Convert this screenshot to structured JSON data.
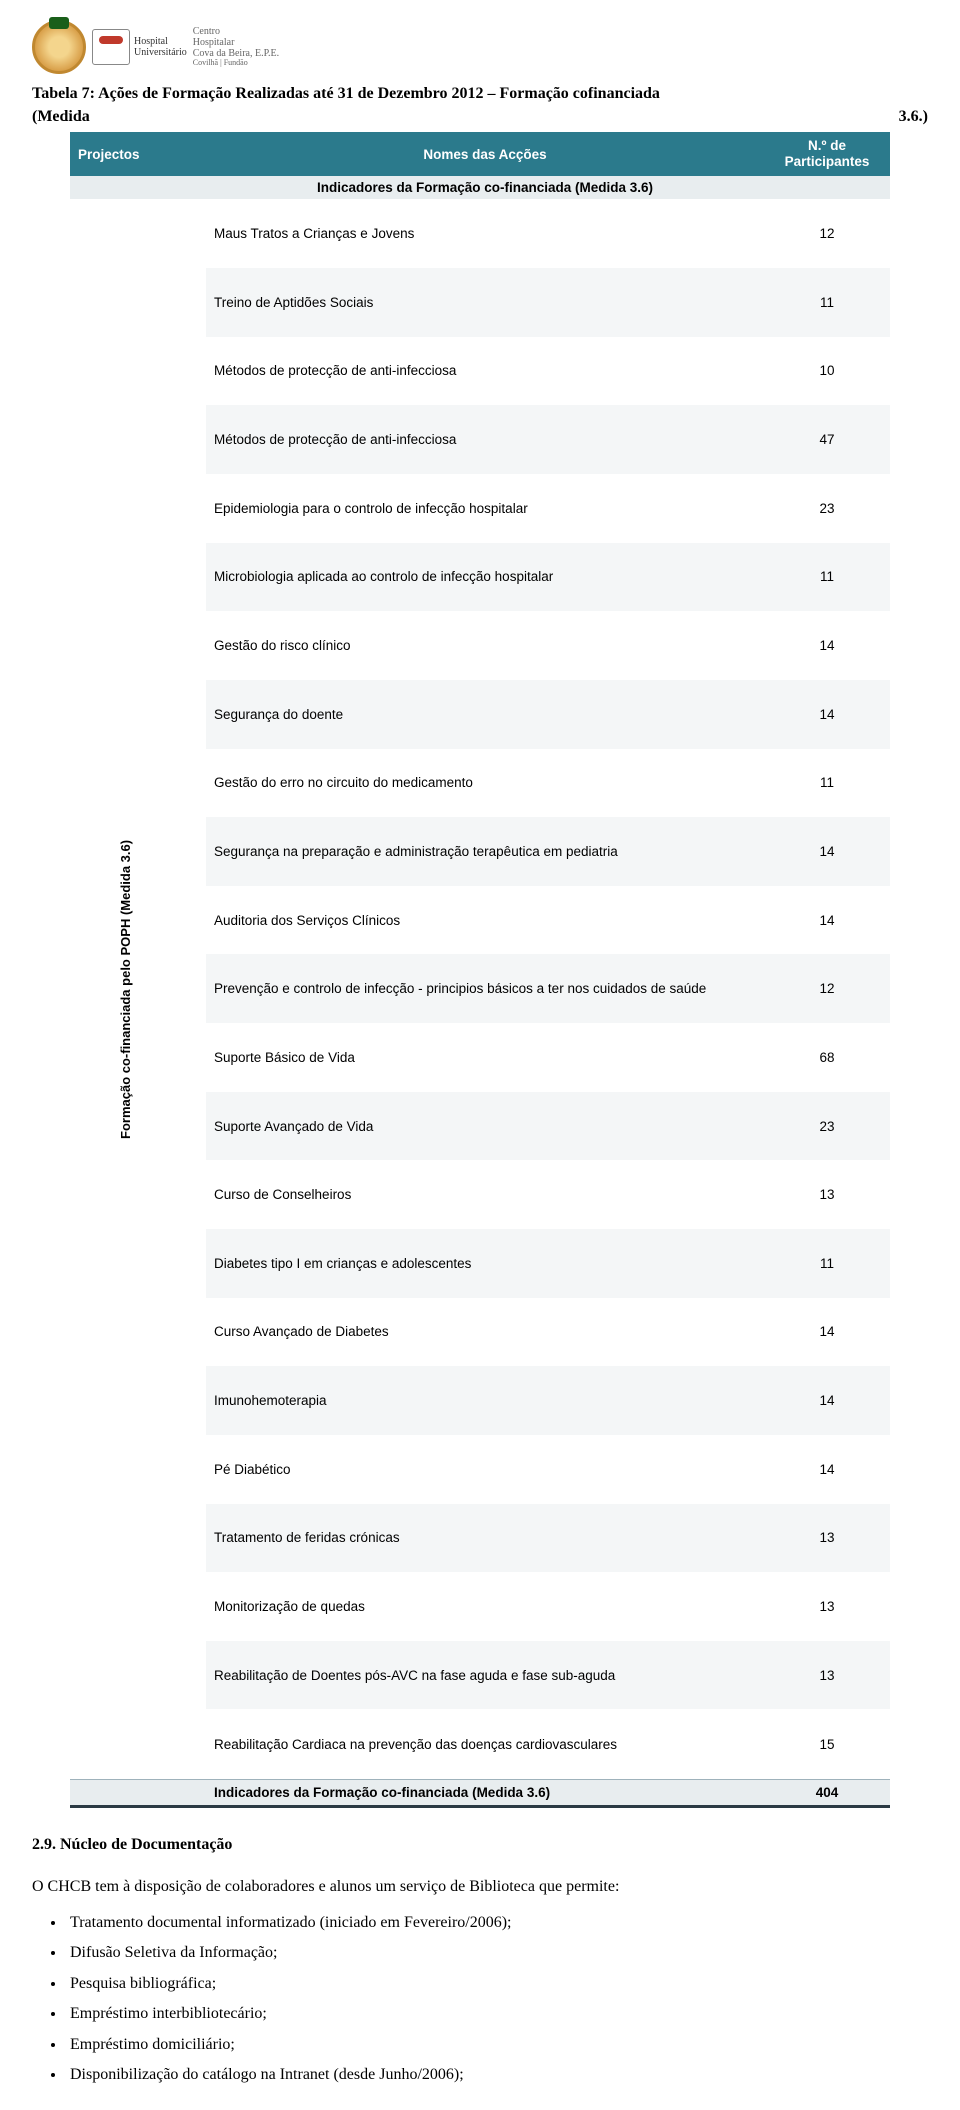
{
  "header": {
    "hospital_label": "Hospital",
    "hospital_sub": "Universitário",
    "chcb_lines": [
      "Centro",
      "Hospitalar",
      "Cova da Beira, E.P.E.",
      "Covilhã | Fundão"
    ]
  },
  "caption": {
    "line1": "Tabela 7: Ações de Formação Realizadas até 31 de Dezembro 2012 – Formação cofinanciada",
    "line2_left": "(Medida",
    "line2_right": "3.6.)"
  },
  "table": {
    "headers": {
      "projectos": "Projectos",
      "nomes": "Nomes das Acções",
      "participantes": "N.º de\nParticipantes"
    },
    "subheader": "Indicadores da Formação co-financiada (Medida 3.6)",
    "rotated_label": "Formação co-financiada pelo POPH (Medida 3.6)",
    "rows": [
      {
        "n": "Maus Tratos a Crianças e Jovens",
        "v": "12"
      },
      {
        "n": "Treino de Aptidões Sociais",
        "v": "11"
      },
      {
        "n": "Métodos de protecção de anti-infecciosa",
        "v": "10"
      },
      {
        "n": "Métodos de protecção de anti-infecciosa",
        "v": "47"
      },
      {
        "n": "Epidemiologia para o controlo de infecção hospitalar",
        "v": "23"
      },
      {
        "n": "Microbiologia aplicada ao controlo de infecção hospitalar",
        "v": "11"
      },
      {
        "n": "Gestão do risco clínico",
        "v": "14"
      },
      {
        "n": "Segurança do doente",
        "v": "14"
      },
      {
        "n": "Gestão do erro no circuito do medicamento",
        "v": "11"
      },
      {
        "n": "Segurança na preparação e administração terapêutica em pediatria",
        "v": "14"
      },
      {
        "n": "Auditoria dos Serviços Clínicos",
        "v": "14"
      },
      {
        "n": "Prevenção e controlo de infecção - principios básicos a ter nos cuidados de saúde",
        "v": "12"
      },
      {
        "n": "Suporte Básico de Vida",
        "v": "68"
      },
      {
        "n": "Suporte Avançado de Vida",
        "v": "23"
      },
      {
        "n": "Curso de Conselheiros",
        "v": "13"
      },
      {
        "n": "Diabetes tipo I em crianças e adolescentes",
        "v": "11"
      },
      {
        "n": "Curso Avançado de Diabetes",
        "v": "14"
      },
      {
        "n": "Imunohemoterapia",
        "v": "14"
      },
      {
        "n": "Pé Diabético",
        "v": "14"
      },
      {
        "n": "Tratamento de feridas crónicas",
        "v": "13"
      },
      {
        "n": "Monitorização de quedas",
        "v": "13"
      },
      {
        "n": "Reabilitação de Doentes pós-AVC na fase aguda e fase sub-aguda",
        "v": "13"
      },
      {
        "n": "Reabilitação Cardiaca na prevenção das doenças cardiovasculares",
        "v": "15"
      }
    ],
    "total": {
      "label": "Indicadores da Formação co-financiada (Medida 3.6)",
      "value": "404"
    }
  },
  "section": {
    "heading": "2.9. Núcleo de Documentação",
    "para": "O CHCB tem à disposição de colaboradores e alunos um serviço de Biblioteca que permite:",
    "bullets": [
      "Tratamento documental informatizado (iniciado em Fevereiro/2006);",
      "Difusão Seletiva da Informação;",
      "Pesquisa bibliográfica;",
      "Empréstimo interbibliotecário;",
      "Empréstimo domiciliário;",
      "Disponibilização do catálogo na Intranet (desde Junho/2006);"
    ]
  },
  "colors": {
    "th_bg": "#2b7a8c",
    "sub_bg": "#e8edef",
    "stripe": "#f4f6f7"
  }
}
